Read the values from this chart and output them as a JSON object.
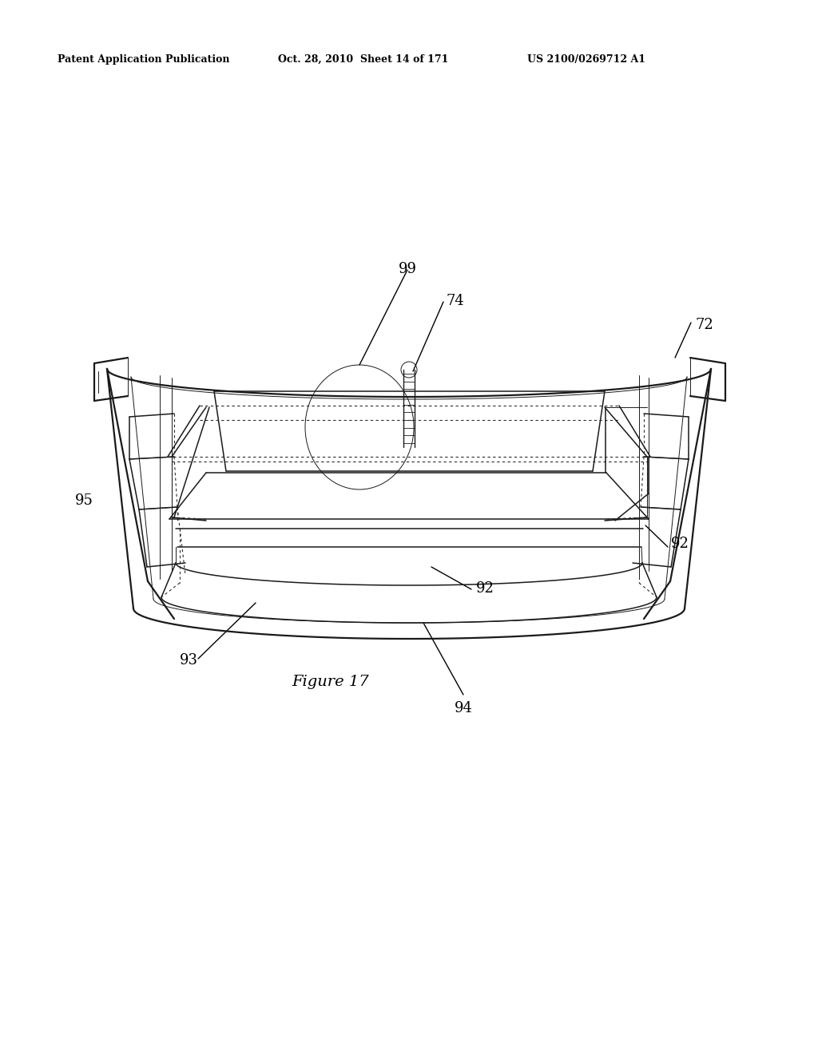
{
  "background_color": "#ffffff",
  "header_left": "Patent Application Publication",
  "header_center": "Oct. 28, 2010  Sheet 14 of 171",
  "header_right": "US 2100/0269712 A1",
  "figure_label": "Figure 17",
  "line_color": "#1a1a1a",
  "text_color": "#000000",
  "lw_main": 1.6,
  "lw_med": 1.1,
  "lw_thin": 0.7,
  "lw_dot": 0.8
}
